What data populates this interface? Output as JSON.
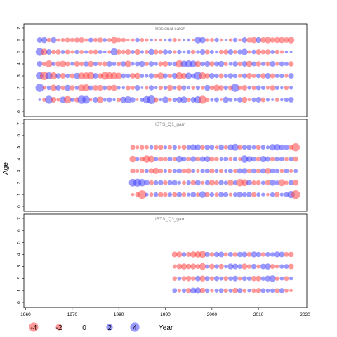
{
  "chart_data": {
    "type": "scatter",
    "kind": "bubble-residuals",
    "ylabel": "Age",
    "xlabel": "Year",
    "xlim": [
      1960,
      2020
    ],
    "xticks": [
      1960,
      1970,
      1980,
      1990,
      2000,
      2010,
      2020
    ],
    "yticks": [
      0,
      1,
      2,
      3,
      4,
      5,
      6,
      7
    ],
    "colors": {
      "negative": "#ff4444",
      "positive": "#4444ff",
      "opacity": 0.55
    },
    "legend": {
      "title": "",
      "values": [
        -4,
        -2,
        0,
        2,
        4
      ],
      "labels": [
        "-4",
        "-2",
        "0",
        "2",
        "4"
      ]
    },
    "panels": [
      {
        "title": "Residual catch",
        "ylim": [
          0,
          7
        ],
        "ages": [
          1,
          2,
          3,
          4,
          5,
          6
        ],
        "years": [
          1963,
          2017
        ],
        "residuals": {
          "1": [
            0.2,
            -0.5,
            1.8,
            -0.9,
            -0.4,
            1.2,
            -1.6,
            0.5,
            -0.8,
            1.9,
            1.7,
            -0.3,
            0.9,
            -1.2,
            0.4,
            0.7,
            0.3,
            -0.6,
            1.1,
            1.4,
            0.8,
            -0.2,
            0.5,
            1.6,
            2.1,
            -0.7,
            0.3,
            1.2,
            -0.4,
            0.6,
            1.0,
            1.3,
            -0.5,
            0.9,
            1.5,
            -1.8,
            -0.6,
            0.4,
            0.7,
            -0.2,
            1.1,
            0.5,
            0.3,
            0.8,
            -1.0,
            -0.3,
            0.6,
            0.9,
            -0.7,
            0.4,
            0.2,
            -0.5,
            0.3,
            0.6,
            0.9
          ],
          "2": [
            2.0,
            -0.4,
            0.6,
            -1.2,
            0.9,
            -0.6,
            1.1,
            -0.8,
            0.5,
            -1.3,
            -1.5,
            0.7,
            -0.9,
            -1.0,
            0.6,
            -0.8,
            -1.1,
            0.4,
            0.3,
            -0.7,
            -0.5,
            0.9,
            0.2,
            -0.4,
            0.8,
            0.3,
            -0.6,
            0.5,
            -1.0,
            0.4,
            -0.9,
            0.7,
            0.3,
            -0.5,
            0.6,
            -0.4,
            1.0,
            -0.6,
            -1.2,
            -0.8,
            0.6,
            -0.7,
            1.9,
            -0.5,
            -0.9,
            0.4,
            -0.6,
            0.7,
            0.5,
            -0.4,
            -0.8,
            0.5,
            0.3,
            -0.6,
            0.4
          ],
          "3": [
            1.6,
            -2.1,
            1.4,
            -1.5,
            0.8,
            -0.9,
            0.6,
            -0.7,
            1.1,
            -1.3,
            -1.4,
            -1.6,
            0.9,
            -0.8,
            -1.7,
            -1.5,
            -1.4,
            -1.2,
            0.7,
            0.6,
            -0.9,
            -1.1,
            0.5,
            0.4,
            0.8,
            -0.6,
            -1.3,
            0.7,
            -0.5,
            0.9,
            -1.5,
            -1.0,
            1.2,
            0.6,
            1.9,
            -1.4,
            -0.8,
            0.9,
            0.6,
            -0.7,
            0.5,
            0.8,
            0.6,
            -0.4,
            0.7,
            -0.9,
            -0.5,
            0.6,
            -0.8,
            0.9,
            -0.7,
            0.5,
            0.6,
            -0.4,
            0.9
          ],
          "4": [
            0.9,
            -0.6,
            -1.4,
            0.5,
            -0.8,
            -1.1,
            -0.7,
            0.4,
            -0.9,
            -0.6,
            0.8,
            -1.0,
            0.6,
            -0.5,
            -0.7,
            0.9,
            0.5,
            -0.6,
            0.8,
            -1.2,
            0.4,
            0.7,
            1.0,
            -0.5,
            0.8,
            0.4,
            -0.7,
            -0.9,
            0.5,
            0.6,
            -1.6,
            1.2,
            1.5,
            1.3,
            -1.1,
            0.6,
            0.9,
            -0.8,
            0.7,
            1.0,
            -0.5,
            0.4,
            0.8,
            -0.6,
            0.9,
            -1.1,
            0.7,
            -0.8,
            0.5,
            -0.6,
            0.9,
            -0.4,
            0.7,
            0.5,
            -0.8
          ],
          "5": [
            1.8,
            -1.3,
            0.9,
            -0.6,
            -0.8,
            0.5,
            -0.7,
            -0.4,
            0.6,
            -0.5,
            0.4,
            -0.6,
            -0.7,
            0.5,
            0.3,
            -0.4,
            1.5,
            -0.8,
            -0.6,
            -0.9,
            0.5,
            -1.0,
            0.4,
            -0.5,
            1.1,
            -0.7,
            -0.6,
            0.8,
            0.5,
            -0.4,
            0.6,
            0.3,
            0.5,
            -0.6,
            0.4,
            0.9,
            -0.7,
            0.5,
            0.3,
            -0.6,
            -0.8,
            0.9,
            -0.5,
            0.7,
            1.2,
            -0.4,
            0.6,
            -0.9,
            -0.7,
            -0.8,
            0.5,
            -0.6,
            -0.4,
            0.3,
            0.2
          ],
          "6": [
            0.9,
            1.1,
            -0.6,
            1.0,
            -0.4,
            -0.5,
            -0.7,
            -0.6,
            -0.8,
            -0.9,
            -0.4,
            0.7,
            -0.6,
            -0.8,
            0.5,
            -0.5,
            -1.2,
            -0.7,
            -0.6,
            -0.3,
            -0.4,
            0.6,
            -0.5,
            -0.4,
            0.3,
            -0.2,
            -0.3,
            0.2,
            0.4,
            -0.5,
            -0.3,
            0.2,
            0.3,
            -0.2,
            1.3,
            1.1,
            -0.4,
            -0.5,
            0.6,
            -0.3,
            0.2,
            -0.4,
            0.6,
            -0.3,
            0.9,
            -0.8,
            -1.1,
            1.0,
            -0.9,
            -1.2,
            -0.8,
            -1.0,
            -1.1,
            -0.9,
            -1.3
          ]
        }
      },
      {
        "title": "IBTS_Q1_gam",
        "ylim": [
          0,
          7
        ],
        "ages": [
          1,
          2,
          3,
          4,
          5
        ],
        "years": [
          1983,
          2018
        ],
        "residuals": {
          "1": [
            -0.3,
            -0.6,
            -2.1,
            0.4,
            -0.5,
            0.6,
            -0.8,
            -0.6,
            0.5,
            -0.7,
            0.8,
            -0.6,
            0.4,
            0.9,
            -0.5,
            1.3,
            -0.7,
            0.6,
            -0.5,
            0.9,
            0.7,
            -0.4,
            0.5,
            1.0,
            0.6,
            0.8,
            -0.7,
            0.5,
            0.4,
            -0.3,
            0.6,
            -0.8,
            0.4,
            0.7,
            1.5,
            -2.2
          ],
          "2": [
            1.7,
            1.8,
            1.6,
            0.9,
            -0.7,
            0.6,
            0.8,
            -0.6,
            0.7,
            0.9,
            0.4,
            -0.5,
            0.6,
            -0.8,
            0.9,
            -0.4,
            0.7,
            -1.0,
            -0.6,
            0.8,
            0.5,
            -1.1,
            0.6,
            -1.6,
            -1.4,
            0.9,
            -0.6,
            -0.7,
            0.5,
            -0.8,
            1.1,
            0.6,
            -1.4,
            -0.5,
            0.8,
            -1.0
          ],
          "3": [
            -0.8,
            -0.4,
            -0.6,
            0.5,
            -0.9,
            -1.2,
            -0.7,
            0.4,
            -0.5,
            0.6,
            0.8,
            -0.7,
            -0.9,
            0.5,
            -0.4,
            0.6,
            0.7,
            -0.8,
            0.5,
            -0.6,
            0.4,
            0.7,
            -0.5,
            0.9,
            1.0,
            -0.6,
            0.8,
            -0.7,
            0.9,
            -1.1,
            0.8,
            0.6,
            -0.5,
            0.7,
            -0.4,
            0.5
          ],
          "4": [
            -1.3,
            0.5,
            -0.8,
            -1.6,
            -1.4,
            0.6,
            -0.8,
            -0.6,
            0.7,
            -0.5,
            1.3,
            0.8,
            -0.6,
            1.0,
            -0.7,
            0.9,
            1.1,
            -0.8,
            -0.6,
            0.4,
            0.7,
            -0.5,
            0.6,
            -0.4,
            1.6,
            1.1,
            0.8,
            -0.7,
            1.2,
            0.9,
            -0.6,
            0.8,
            0.7,
            -0.5,
            0.6,
            -0.9
          ],
          "5": [
            -0.7,
            -0.4,
            -0.6,
            -0.5,
            0.5,
            -0.6,
            -0.8,
            0.4,
            -0.5,
            0.6,
            -0.4,
            -0.7,
            0.6,
            1.1,
            1.0,
            -0.6,
            0.8,
            0.7,
            -0.4,
            0.9,
            -0.5,
            1.0,
            1.4,
            -0.6,
            0.7,
            0.8,
            0.5,
            -0.7,
            0.6,
            0.4,
            1.2,
            1.3,
            0.9,
            0.8,
            -0.6,
            -1.9
          ]
        }
      },
      {
        "title": "IBTS_Q3_gam",
        "ylim": [
          0,
          7
        ],
        "ages": [
          1,
          2,
          3,
          4
        ],
        "years": [
          1992,
          2017
        ],
        "residuals": {
          "1": [
            0.7,
            -0.4,
            0.6,
            -0.8,
            1.1,
            1.2,
            -0.9,
            0.6,
            -0.4,
            0.5,
            0.7,
            -0.6,
            0.5,
            -0.9,
            0.8,
            -0.5,
            0.4,
            -0.6,
            -0.8,
            0.7,
            0.5,
            0.6,
            -0.7,
            0.8,
            -0.5,
            -0.3
          ],
          "2": [
            -0.6,
            0.5,
            -0.7,
            -0.8,
            -0.6,
            0.9,
            -1.0,
            0.7,
            -0.6,
            0.8,
            0.5,
            -0.7,
            0.6,
            0.9,
            -0.5,
            0.7,
            0.6,
            -0.8,
            -0.9,
            0.6,
            1.0,
            1.2,
            -0.6,
            0.5,
            -0.7,
            0.4
          ],
          "3": [
            -0.5,
            -0.9,
            -1.1,
            -0.8,
            -1.0,
            -0.7,
            -1.3,
            0.5,
            -0.9,
            0.6,
            -0.8,
            0.4,
            1.0,
            0.9,
            0.7,
            -1.0,
            -0.6,
            0.8,
            -0.5,
            0.9,
            1.1,
            -0.7,
            -0.5,
            0.6,
            0.7,
            -0.9
          ],
          "4": [
            -0.9,
            -1.0,
            0.6,
            -0.7,
            -1.1,
            -1.2,
            -1.4,
            0.7,
            -0.6,
            0.8,
            0.9,
            -0.5,
            0.7,
            -0.6,
            0.8,
            0.9,
            -0.7,
            1.0,
            0.8,
            -0.6,
            0.7,
            0.6,
            1.0,
            0.9,
            -0.7,
            -0.8
          ]
        }
      }
    ]
  }
}
